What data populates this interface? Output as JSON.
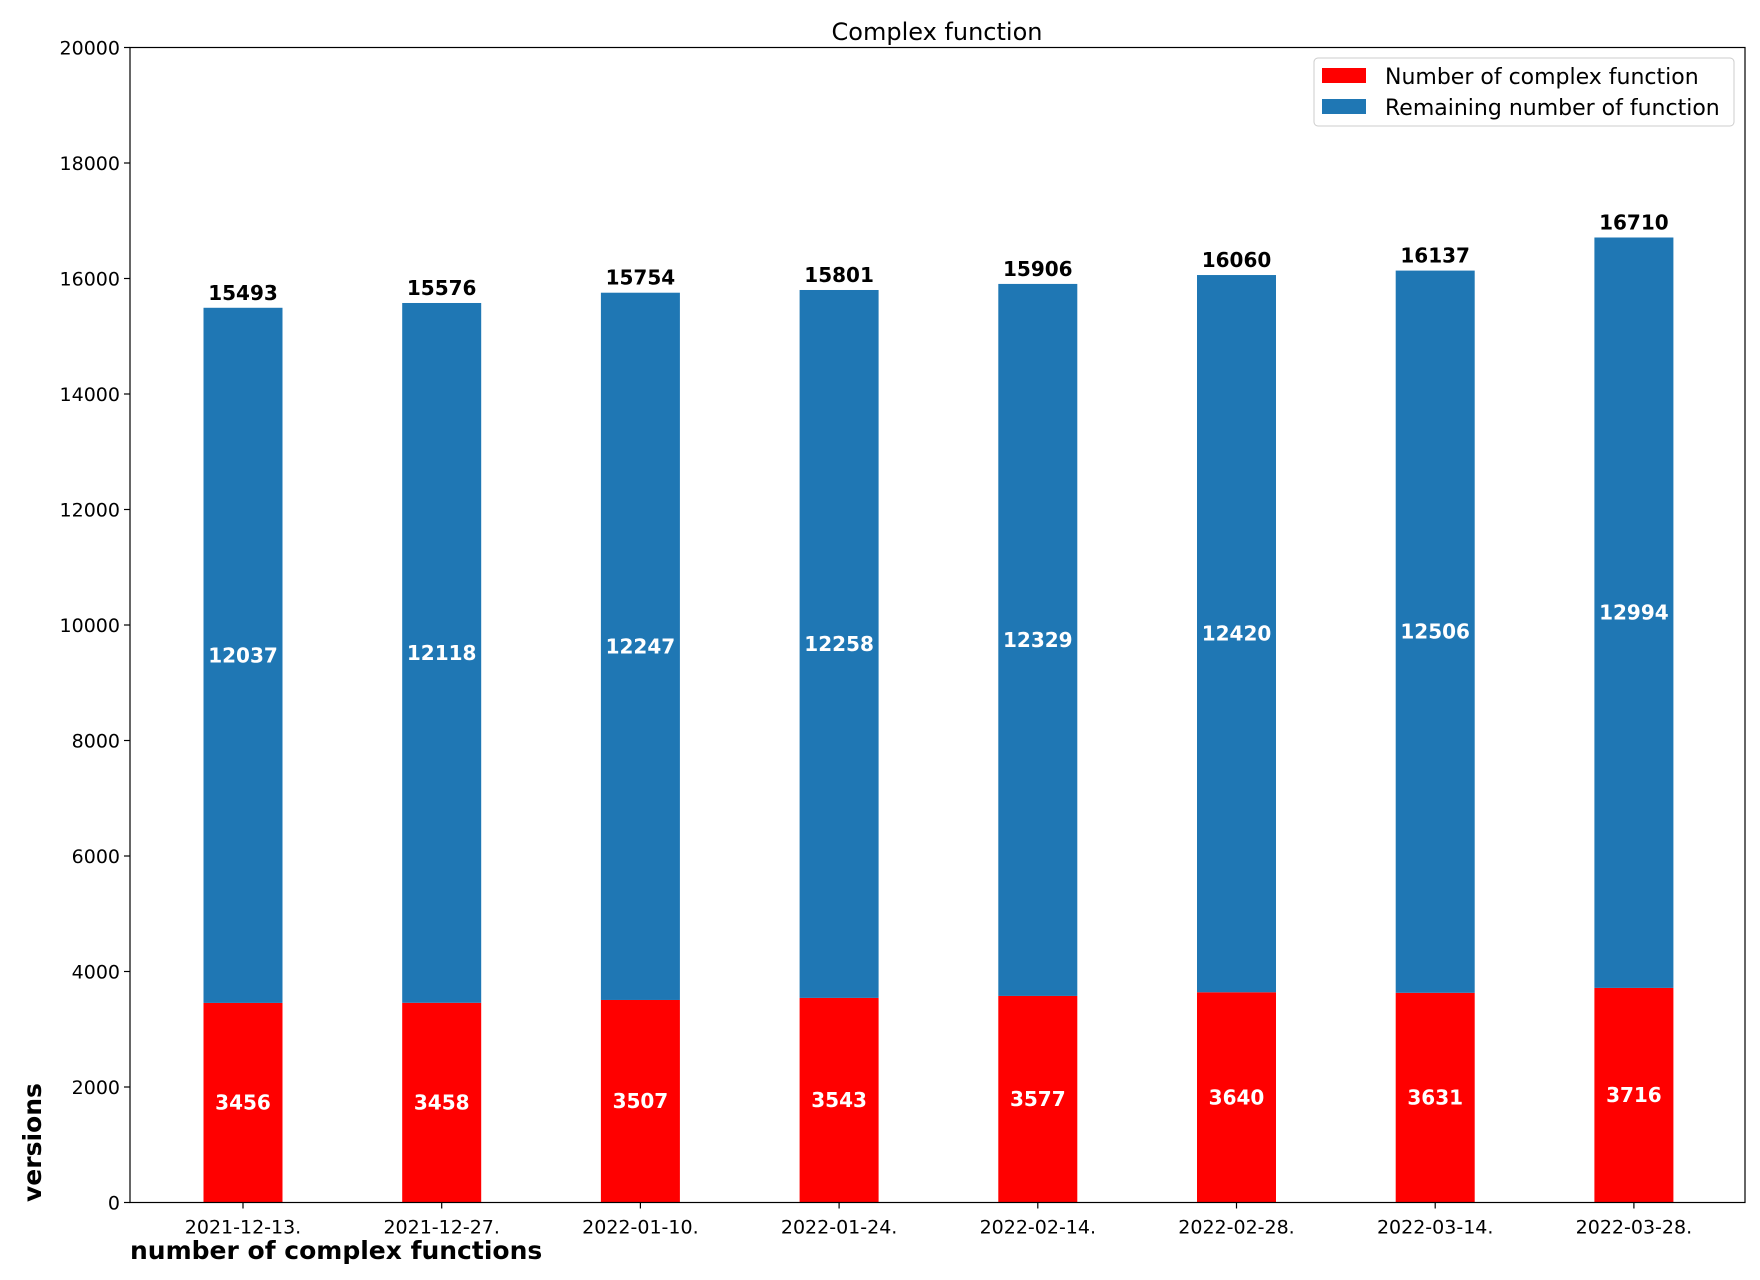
{
  "chart_data": {
    "type": "bar",
    "stacked": true,
    "title": "Complex function",
    "xlabel": "number of complex functions",
    "ylabel": "versions",
    "categories": [
      "2021-12-13.",
      "2021-12-27.",
      "2022-01-10.",
      "2022-01-24.",
      "2022-02-14.",
      "2022-02-28.",
      "2022-03-14.",
      "2022-03-28."
    ],
    "series": [
      {
        "name": "Number of complex function",
        "color": "#ff0000",
        "values": [
          3456,
          3458,
          3507,
          3543,
          3577,
          3640,
          3631,
          3716
        ]
      },
      {
        "name": "Remaining number of function",
        "color": "#1f77b4",
        "values": [
          12037,
          12118,
          12247,
          12258,
          12329,
          12420,
          12506,
          12994
        ]
      }
    ],
    "totals": [
      15493,
      15576,
      15754,
      15801,
      15906,
      16060,
      16137,
      16710
    ],
    "ylim": [
      0,
      20000
    ],
    "yticks": [
      0,
      2000,
      4000,
      6000,
      8000,
      10000,
      12000,
      14000,
      16000,
      18000,
      20000
    ],
    "grid": false,
    "legend_position": "top-right"
  }
}
